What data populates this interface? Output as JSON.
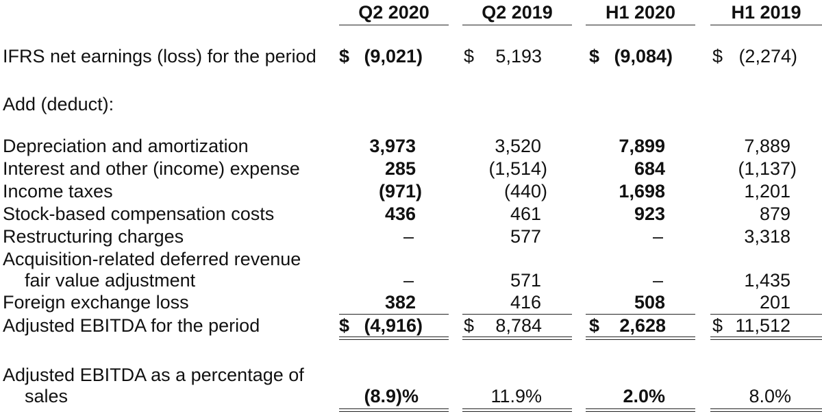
{
  "columns": [
    "Q2 2020",
    "Q2 2019",
    "H1 2020",
    "H1 2019"
  ],
  "currency_symbol": "$",
  "rows": {
    "net_earnings": {
      "label": "IFRS net earnings (loss) for the period",
      "values": [
        "(9,021)",
        "5,193",
        "(9,084)",
        "(2,274)"
      ]
    },
    "add_deduct": {
      "label": "Add (deduct):"
    },
    "depreciation": {
      "label": "Depreciation and amortization",
      "values": [
        "3,973",
        "3,520",
        "7,899",
        "7,889"
      ]
    },
    "interest": {
      "label": "Interest and other (income) expense",
      "values": [
        "285",
        "(1,514)",
        "684",
        "(1,137)"
      ]
    },
    "income_taxes": {
      "label": "Income taxes",
      "values": [
        "(971)",
        "(440)",
        "1,698",
        "1,201"
      ]
    },
    "stock_comp": {
      "label": "Stock-based compensation costs",
      "values": [
        "436",
        "461",
        "923",
        "879"
      ]
    },
    "restructuring": {
      "label": "Restructuring charges",
      "values": [
        "–",
        "577",
        "–",
        "3,318"
      ]
    },
    "acquisition": {
      "label_line1": "Acquisition-related deferred revenue",
      "label_line2": "fair value adjustment",
      "values": [
        "–",
        "571",
        "–",
        "1,435"
      ]
    },
    "fx_loss": {
      "label": "Foreign exchange loss",
      "values": [
        "382",
        "416",
        "508",
        "201"
      ]
    },
    "adjusted_ebitda": {
      "label": "Adjusted EBITDA for the period",
      "values": [
        "(4,916)",
        "8,784",
        "2,628",
        "11,512"
      ]
    },
    "ebitda_pct": {
      "label_line1": "Adjusted EBITDA as a percentage of",
      "label_line2": "sales",
      "values": [
        "(8.9)%",
        "11.9%",
        "2.0%",
        "8.0%"
      ]
    }
  }
}
